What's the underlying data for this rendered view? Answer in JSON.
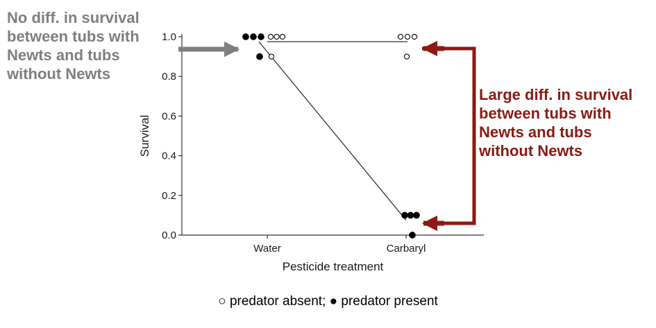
{
  "annotations": {
    "left": [
      "No diff. in survival",
      "between tubs with",
      "Newts and tubs",
      "without Newts"
    ],
    "right": [
      "Large diff. in survival",
      "between tubs with",
      "Newts and tubs",
      "without Newts"
    ],
    "left_color": "#7f7f7f",
    "right_color": "#8b1a12"
  },
  "legend": {
    "absent_symbol": "○",
    "absent_text": "predator absent;",
    "present_symbol": "●",
    "present_text": "predator present"
  },
  "chart_data": {
    "type": "scatter",
    "xlabel": "Pesticide treatment",
    "ylabel": "Survival",
    "categories": [
      "Water",
      "Carbaryl"
    ],
    "ylim": [
      0,
      1
    ],
    "yticks": [
      "0.0",
      "0.2",
      "0.4",
      "0.6",
      "0.8",
      "1.0"
    ],
    "series": [
      {
        "name": "predator absent",
        "marker": "open",
        "points": [
          {
            "category": "Water",
            "value": 1.0
          },
          {
            "category": "Water",
            "value": 1.0
          },
          {
            "category": "Water",
            "value": 1.0
          },
          {
            "category": "Water",
            "value": 0.9
          },
          {
            "category": "Carbaryl",
            "value": 1.0
          },
          {
            "category": "Carbaryl",
            "value": 1.0
          },
          {
            "category": "Carbaryl",
            "value": 1.0
          },
          {
            "category": "Carbaryl",
            "value": 0.9
          }
        ],
        "mean_line": [
          0.975,
          0.975
        ]
      },
      {
        "name": "predator present",
        "marker": "filled",
        "points": [
          {
            "category": "Water",
            "value": 1.0
          },
          {
            "category": "Water",
            "value": 1.0
          },
          {
            "category": "Water",
            "value": 1.0
          },
          {
            "category": "Water",
            "value": 0.9
          },
          {
            "category": "Carbaryl",
            "value": 0.1
          },
          {
            "category": "Carbaryl",
            "value": 0.1
          },
          {
            "category": "Carbaryl",
            "value": 0.1
          },
          {
            "category": "Carbaryl",
            "value": 0.0
          }
        ],
        "mean_line": [
          0.975,
          0.075
        ]
      }
    ]
  }
}
